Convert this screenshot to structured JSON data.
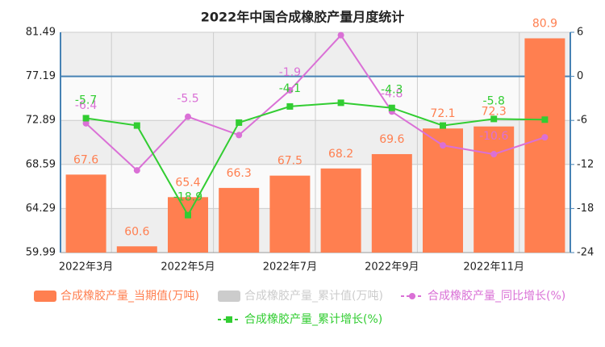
{
  "chart_data": {
    "type": "bar",
    "title": "2022年中国合成橡胶产量月度统计",
    "categories": [
      "2022年3月",
      null,
      "2022年5月",
      null,
      "2022年7月",
      null,
      "2022年9月",
      null,
      "2022年11月",
      null
    ],
    "series": [
      {
        "name": "合成橡胶产量_当期值(万吨)",
        "color": "#ff7f50",
        "type": "bar",
        "values": [
          67.6,
          60.6,
          65.4,
          66.3,
          67.5,
          68.2,
          69.6,
          72.1,
          72.3,
          80.9
        ]
      },
      {
        "name": "合成橡胶产量_累计值(万吨)",
        "color": "#cccccc",
        "type": "bar"
      },
      {
        "name": "合成橡胶产量_同比增长(%)",
        "color": "#da70d6",
        "type": "line",
        "marker": "circle",
        "axis": "y2",
        "values": [
          -6.4,
          -12.8,
          -5.5,
          -8.0,
          -1.9,
          5.6,
          -4.8,
          -9.4,
          -10.6,
          -8.3
        ]
      },
      {
        "name": "合成橡胶产量_累计增长(%)",
        "color": "#32cd32",
        "type": "line",
        "marker": "square",
        "axis": "y2",
        "values": [
          -5.7,
          -6.7,
          -18.9,
          -6.3,
          -4.1,
          -3.6,
          -4.3,
          -6.7,
          -5.8,
          -5.9
        ]
      }
    ],
    "ylim": [
      59.99,
      81.49
    ],
    "yticks": [
      59.99,
      64.29,
      68.59,
      72.89,
      77.19,
      81.49
    ],
    "y2lim": [
      -24,
      6
    ],
    "y2ticks": [
      -24,
      -18,
      -12,
      -6,
      0,
      6
    ]
  }
}
